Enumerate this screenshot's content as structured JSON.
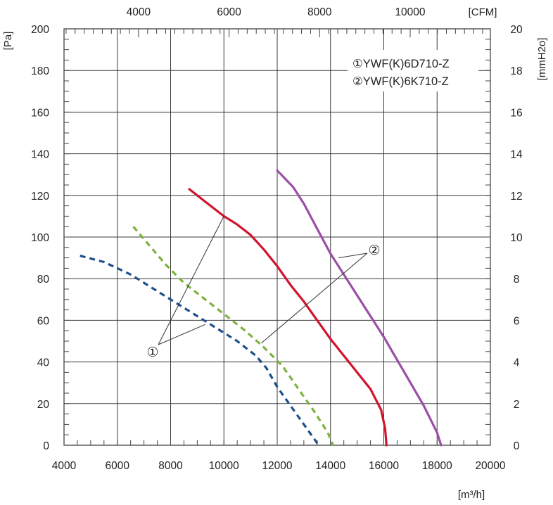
{
  "chart_data": {
    "type": "line",
    "xlabel": "[m³/h]",
    "ylabel": "[Pa]",
    "xlabel_top": "[CFM]",
    "ylabel_right": "[mmH2o]",
    "xlim": [
      4000,
      20000
    ],
    "ylim": [
      0,
      200
    ],
    "x_ticks": [
      "4000",
      "6000",
      "8000",
      "10000",
      "12000",
      "14000",
      "16000",
      "18000",
      "20000"
    ],
    "y_ticks": [
      "0",
      "20",
      "40",
      "60",
      "80",
      "100",
      "120",
      "140",
      "160",
      "180",
      "200"
    ],
    "top_ticks": [
      {
        "cfm": 4000,
        "label": "4000"
      },
      {
        "cfm": 6000,
        "label": "6000"
      },
      {
        "cfm": 8000,
        "label": "8000"
      },
      {
        "cfm": 10000,
        "label": "10000"
      }
    ],
    "right_ticks": [
      "0",
      "2",
      "4",
      "6",
      "8",
      "10",
      "12",
      "14",
      "16",
      "18",
      "20"
    ],
    "grid": true,
    "legend": {
      "position": "top-right",
      "entries": [
        "①YWF(K)6D710-Z",
        "②YWF(K)6K710-Z"
      ]
    },
    "annotations": [
      {
        "label": "①",
        "lines_to": [
          "red",
          "blue"
        ]
      },
      {
        "label": "②",
        "lines_to": [
          "purple",
          "green"
        ]
      }
    ],
    "series": [
      {
        "color": "#d0142c",
        "dash": false,
        "points": [
          [
            8700,
            123
          ],
          [
            9300,
            117
          ],
          [
            10000,
            110
          ],
          [
            10500,
            106
          ],
          [
            11000,
            101
          ],
          [
            11500,
            94
          ],
          [
            12000,
            86
          ],
          [
            12500,
            77
          ],
          [
            13000,
            69
          ],
          [
            13500,
            60
          ],
          [
            14000,
            51
          ],
          [
            14500,
            43
          ],
          [
            15000,
            35
          ],
          [
            15500,
            27
          ],
          [
            15900,
            17
          ],
          [
            16050,
            8
          ],
          [
            16100,
            0
          ]
        ]
      },
      {
        "color": "#9b4fa6",
        "dash": false,
        "points": [
          [
            12000,
            132
          ],
          [
            12600,
            124
          ],
          [
            13000,
            116
          ],
          [
            13500,
            104
          ],
          [
            14000,
            92
          ],
          [
            14500,
            82
          ],
          [
            15000,
            72
          ],
          [
            15500,
            62
          ],
          [
            16000,
            52
          ],
          [
            16500,
            41
          ],
          [
            17000,
            30
          ],
          [
            17500,
            19
          ],
          [
            18000,
            6
          ],
          [
            18150,
            0
          ]
        ]
      },
      {
        "color": "#1f4f8a",
        "dash": true,
        "points": [
          [
            4600,
            91
          ],
          [
            5500,
            88
          ],
          [
            6500,
            82
          ],
          [
            7500,
            74
          ],
          [
            8500,
            66
          ],
          [
            9500,
            58
          ],
          [
            10500,
            50
          ],
          [
            11200,
            43
          ],
          [
            11600,
            37
          ],
          [
            12000,
            28
          ],
          [
            12500,
            19
          ],
          [
            13000,
            10
          ],
          [
            13500,
            1
          ],
          [
            13600,
            0
          ]
        ]
      },
      {
        "color": "#7db33b",
        "dash": true,
        "points": [
          [
            6600,
            105
          ],
          [
            7200,
            96
          ],
          [
            7800,
            87
          ],
          [
            8500,
            78
          ],
          [
            9200,
            71
          ],
          [
            10000,
            63
          ],
          [
            10800,
            55
          ],
          [
            11500,
            47
          ],
          [
            12200,
            38
          ],
          [
            12800,
            27
          ],
          [
            13400,
            16
          ],
          [
            13900,
            6
          ],
          [
            14100,
            0
          ]
        ]
      }
    ]
  }
}
